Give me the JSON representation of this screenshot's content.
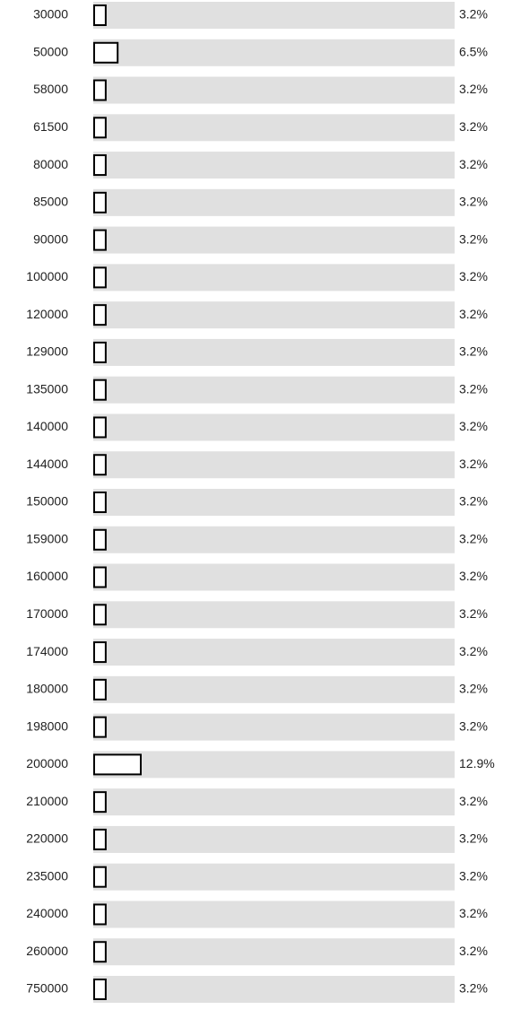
{
  "chart_data": {
    "type": "bar",
    "orientation": "horizontal",
    "categories": [
      "30000",
      "50000",
      "58000",
      "61500",
      "80000",
      "85000",
      "90000",
      "100000",
      "120000",
      "129000",
      "135000",
      "140000",
      "144000",
      "150000",
      "159000",
      "160000",
      "170000",
      "174000",
      "180000",
      "198000",
      "200000",
      "210000",
      "220000",
      "235000",
      "240000",
      "260000",
      "750000"
    ],
    "values": [
      3.2,
      6.5,
      3.2,
      3.2,
      3.2,
      3.2,
      3.2,
      3.2,
      3.2,
      3.2,
      3.2,
      3.2,
      3.2,
      3.2,
      3.2,
      3.2,
      3.2,
      3.2,
      3.2,
      3.2,
      12.9,
      3.2,
      3.2,
      3.2,
      3.2,
      3.2,
      3.2
    ],
    "value_labels": [
      "3.2%",
      "6.5%",
      "3.2%",
      "3.2%",
      "3.2%",
      "3.2%",
      "3.2%",
      "3.2%",
      "3.2%",
      "3.2%",
      "3.2%",
      "3.2%",
      "3.2%",
      "3.2%",
      "3.2%",
      "3.2%",
      "3.2%",
      "3.2%",
      "3.2%",
      "3.2%",
      "12.9%",
      "3.2%",
      "3.2%",
      "3.2%",
      "3.2%",
      "3.2%",
      "3.2%"
    ],
    "xlim": [
      0,
      100
    ],
    "color": "#ffffff",
    "track_color": "#e0e0e0"
  }
}
